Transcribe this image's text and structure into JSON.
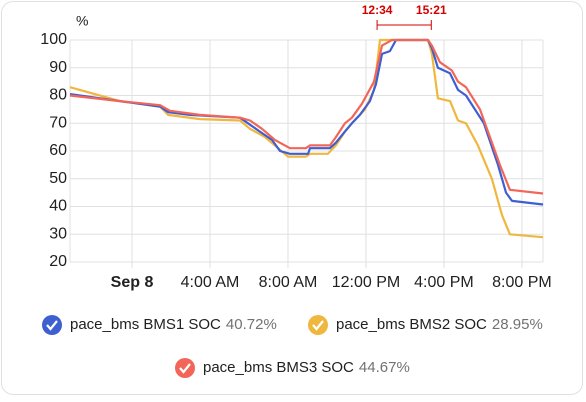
{
  "chart_data": {
    "type": "line",
    "y_axis_label": "%",
    "xlim": [
      -3.18,
      21.08
    ],
    "xticks": [
      {
        "value": 0,
        "label": "Sep 8"
      },
      {
        "value": 4,
        "label": "4:00 AM"
      },
      {
        "value": 8,
        "label": "8:00 AM"
      },
      {
        "value": 12,
        "label": "12:00 PM"
      },
      {
        "value": 16,
        "label": "4:00 PM"
      },
      {
        "value": 20,
        "label": "8:00 PM"
      }
    ],
    "ylim": [
      20,
      100
    ],
    "yticks": [
      20,
      30,
      40,
      50,
      60,
      70,
      80,
      90,
      100
    ],
    "grid": true,
    "annotation": {
      "x_start": 12.57,
      "x_end": 15.35,
      "labels": [
        "12:34",
        "15:21"
      ],
      "color": "#d40000"
    },
    "series": [
      {
        "name": "pace_bms BMS2 SOC",
        "legend_value": "28.95%",
        "color": "#f0b73e",
        "x": [
          -3.18,
          -0.62,
          1.44,
          1.85,
          3.49,
          5.54,
          6.05,
          6.82,
          7.33,
          8.0,
          8.92,
          9.13,
          10.05,
          10.46,
          10.92,
          11.28,
          11.95,
          12.41,
          12.72,
          15.18,
          15.38,
          15.69,
          16.31,
          16.72,
          17.13,
          17.74,
          18.46,
          18.97,
          19.38,
          21.08
        ],
        "values": [
          83,
          78,
          76,
          73,
          71.5,
          71,
          68,
          65,
          62,
          58,
          58,
          59,
          59,
          62,
          67,
          70,
          75,
          82,
          100,
          100,
          95,
          79,
          78,
          71,
          70,
          62,
          50,
          37,
          30,
          28.95
        ]
      },
      {
        "name": "pace_bms BMS1 SOC",
        "legend_value": "40.72%",
        "color": "#3e5fd1",
        "x": [
          -3.18,
          -0.62,
          1.44,
          1.85,
          2.97,
          5.54,
          5.95,
          6.56,
          7.18,
          7.59,
          8.1,
          9.03,
          9.13,
          10.15,
          10.46,
          10.92,
          11.28,
          11.69,
          12.2,
          12.51,
          12.82,
          13.23,
          13.54,
          15.18,
          15.38,
          15.69,
          16.31,
          16.72,
          17.13,
          18.05,
          18.77,
          19.18,
          19.49,
          21.08
        ],
        "values": [
          80.5,
          78,
          76,
          74,
          73,
          72,
          70,
          67,
          64,
          60,
          59,
          59,
          61,
          61,
          63,
          67,
          70,
          73,
          78,
          84,
          95,
          96,
          100,
          100,
          97,
          90,
          88,
          82,
          80,
          70,
          55,
          45,
          42,
          40.72
        ]
      },
      {
        "name": "pace_bms BMS3 SOC",
        "legend_value": "44.67%",
        "color": "#f2665a",
        "x": [
          -3.18,
          -0.62,
          1.44,
          1.95,
          3.49,
          5.54,
          6.05,
          6.67,
          7.33,
          8.1,
          8.92,
          9.13,
          10.15,
          10.46,
          10.92,
          11.28,
          11.79,
          12.41,
          12.82,
          13.33,
          15.18,
          15.38,
          15.79,
          16.41,
          16.72,
          17.13,
          17.85,
          18.87,
          19.38,
          21.08
        ],
        "values": [
          80,
          78,
          76.5,
          74.5,
          73,
          72,
          71,
          68,
          64,
          61,
          61,
          62,
          62,
          65,
          70,
          72,
          77,
          85,
          98,
          100,
          100,
          98,
          92,
          89,
          85,
          83,
          75,
          55,
          46,
          44.67
        ]
      }
    ]
  }
}
